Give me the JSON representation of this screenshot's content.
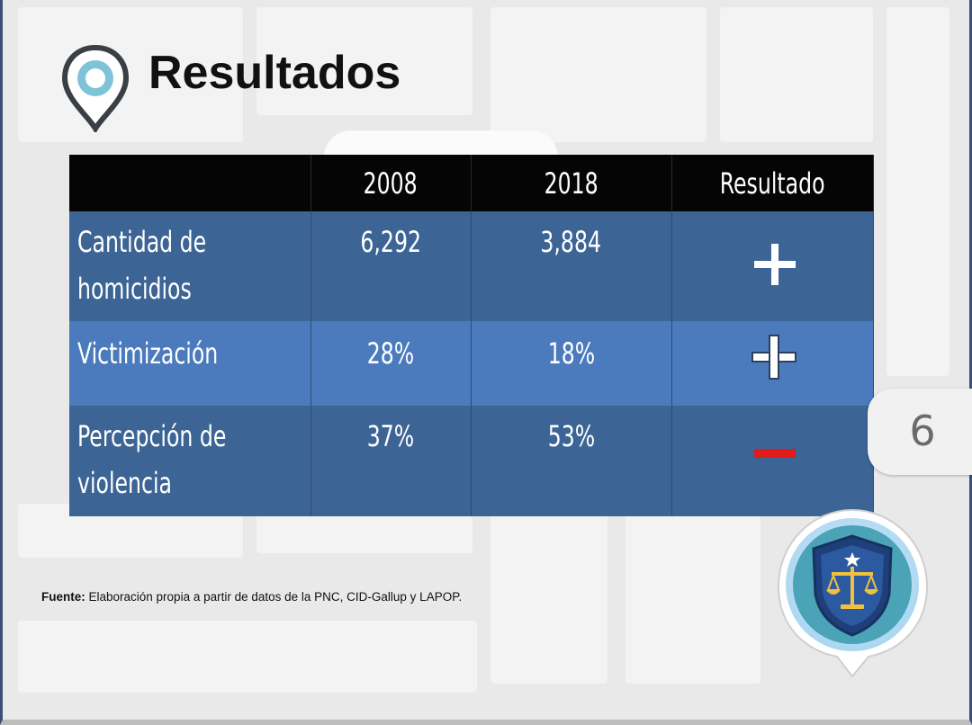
{
  "title": "Resultados",
  "icons": {
    "title_icon": "map-pin-icon",
    "badge_icon": "justice-scale-shield-icon"
  },
  "table": {
    "headers": [
      "",
      "2008",
      "2018",
      "Resultado"
    ],
    "rows": [
      {
        "label_line1": "Cantidad de",
        "label_line2": "homicidios",
        "v2008": "6,292",
        "v2018": "3,884",
        "result": "+",
        "result_color": "#ffffff"
      },
      {
        "label_line1": "Victimización",
        "label_line2": "",
        "v2008": "28%",
        "v2018": "18%",
        "result": "+",
        "result_color": "#ffffff"
      },
      {
        "label_line1": "Percepción de",
        "label_line2": "violencia",
        "v2008": "37%",
        "v2018": "53%",
        "result": "−",
        "result_color": "#e11a1a"
      }
    ]
  },
  "page_number": "6",
  "source": {
    "label": "Fuente:",
    "text": " Elaboración propia a partir de datos de la PNC, CID-Gallup y LAPOP."
  },
  "colors": {
    "header_bg": "#050505",
    "row_dark": "#3c6495",
    "row_light": "#4b7bbd",
    "minus_red": "#e11a1a"
  }
}
